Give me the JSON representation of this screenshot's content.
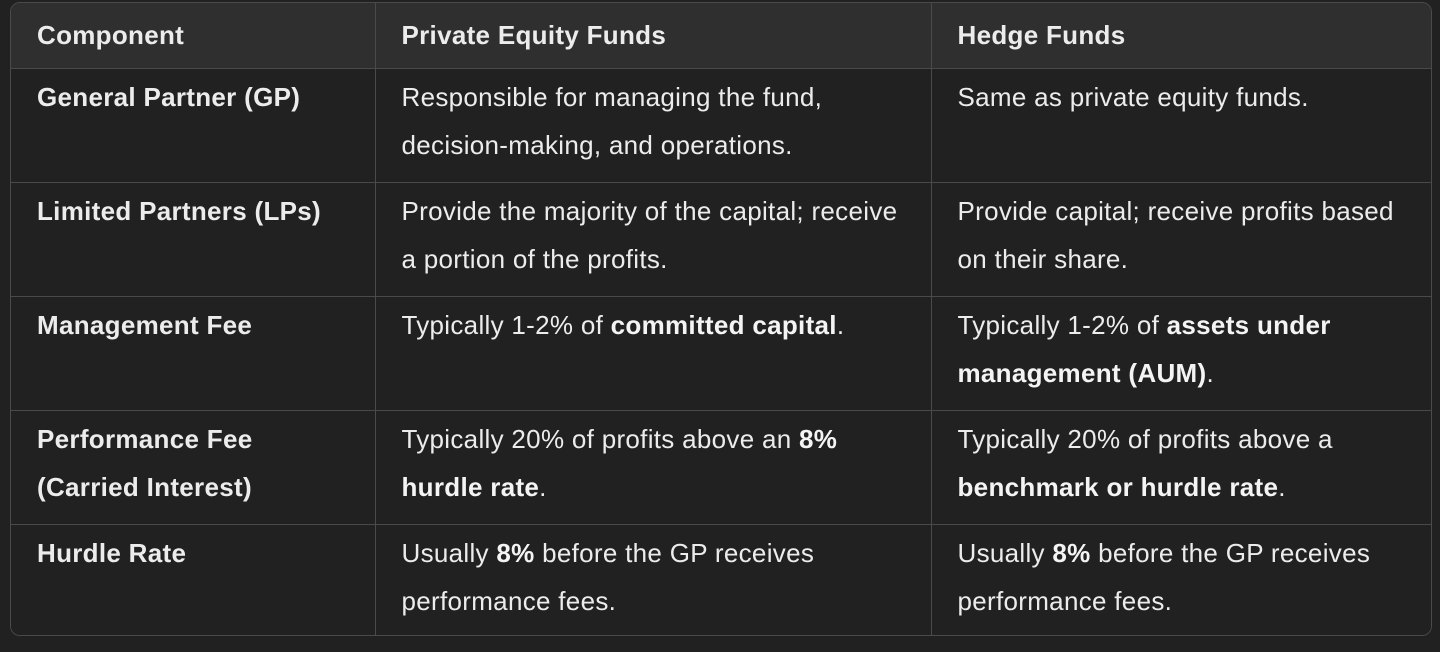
{
  "table": {
    "headers": [
      "Component",
      "Private Equity Funds",
      "Hedge Funds"
    ],
    "rows": [
      {
        "component": "General Partner (GP)",
        "pe": [
          {
            "t": "Responsible for managing the fund, decision-making, and operations."
          }
        ],
        "hf": [
          {
            "t": "Same as private equity funds."
          }
        ]
      },
      {
        "component": "Limited Partners (LPs)",
        "pe": [
          {
            "t": "Provide the majority of the capital; receive a portion of the profits."
          }
        ],
        "hf": [
          {
            "t": "Provide capital; receive profits based on their share."
          }
        ]
      },
      {
        "component": "Management Fee",
        "pe": [
          {
            "t": "Typically 1-2% of "
          },
          {
            "t": "committed capital",
            "b": true
          },
          {
            "t": "."
          }
        ],
        "hf": [
          {
            "t": "Typically 1-2% of "
          },
          {
            "t": "assets under management (AUM)",
            "b": true
          },
          {
            "t": "."
          }
        ]
      },
      {
        "component": "Performance Fee (Carried Interest)",
        "pe": [
          {
            "t": "Typically 20% of profits above an "
          },
          {
            "t": "8% hurdle rate",
            "b": true
          },
          {
            "t": "."
          }
        ],
        "hf": [
          {
            "t": "Typically 20% of profits above a "
          },
          {
            "t": "benchmark or hurdle rate",
            "b": true
          },
          {
            "t": "."
          }
        ]
      },
      {
        "component": "Hurdle Rate",
        "pe": [
          {
            "t": "Usually "
          },
          {
            "t": "8%",
            "b": true
          },
          {
            "t": " before the GP receives performance fees."
          }
        ],
        "hf": [
          {
            "t": "Usually "
          },
          {
            "t": "8%",
            "b": true
          },
          {
            "t": " before the GP receives performance fees."
          }
        ]
      }
    ]
  },
  "colors": {
    "background": "#212121",
    "header_background": "#2f2f2f",
    "border": "#4a4a4a",
    "text": "#ececec"
  }
}
